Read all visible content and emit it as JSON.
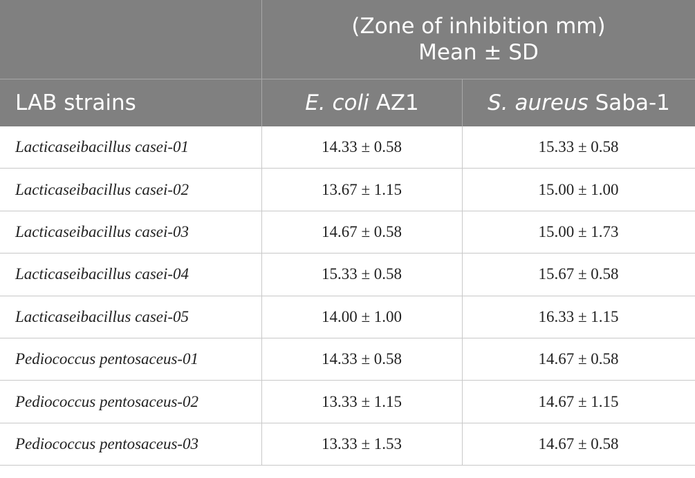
{
  "table": {
    "group_header": {
      "line1": "(Zone of inhibition mm)",
      "line2": "Mean ± SD"
    },
    "columns": [
      {
        "plain": "LAB strains"
      },
      {
        "italic": "E. coli",
        "plain": "AZ1"
      },
      {
        "italic": "S. aureus",
        "plain": "Saba-1"
      }
    ],
    "rows": [
      [
        "Lacticaseibacillus casei-01",
        "14.33 ± 0.58",
        "15.33 ± 0.58"
      ],
      [
        "Lacticaseibacillus casei-02",
        "13.67 ± 1.15",
        "15.00 ± 1.00"
      ],
      [
        "Lacticaseibacillus casei-03",
        "14.67 ± 0.58",
        "15.00 ± 1.73"
      ],
      [
        "Lacticaseibacillus casei-04",
        "15.33 ± 0.58",
        "15.67 ± 0.58"
      ],
      [
        "Lacticaseibacillus casei-05",
        "14.00 ± 1.00",
        "16.33 ± 1.15"
      ],
      [
        "Pediococcus pentosaceus-01",
        "14.33 ± 0.58",
        "14.67 ± 0.58"
      ],
      [
        "Pediococcus pentosaceus-02",
        "13.33 ± 1.15",
        "14.67 ± 1.15"
      ],
      [
        "Pediococcus pentosaceus-03",
        "13.33 ± 1.53",
        "14.67 ± 0.58"
      ]
    ]
  }
}
